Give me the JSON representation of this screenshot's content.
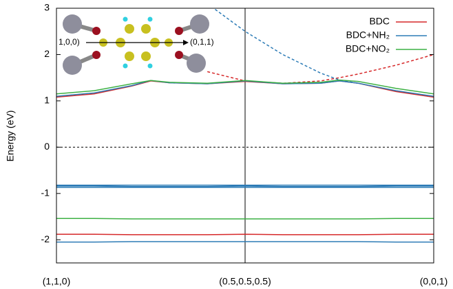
{
  "chart_data": {
    "type": "band-structure",
    "y_label": "Energy (eV)",
    "ylim": [
      -2.5,
      3
    ],
    "yticks": [
      -2,
      -1,
      0,
      1,
      2,
      3
    ],
    "xlim": [
      0,
      1
    ],
    "xticks": [
      {
        "value": 0,
        "label": "(1,1,0)"
      },
      {
        "value": 0.5,
        "label": "(0.5,0.5,0.5)"
      },
      {
        "value": 1,
        "label": "(0,0,1)"
      }
    ],
    "x": [
      0,
      0.1,
      0.2,
      0.25,
      0.3,
      0.4,
      0.5,
      0.6,
      0.7,
      0.75,
      0.8,
      0.9,
      1.0
    ],
    "inset_labels": [
      "1,0,0)",
      "(0,1,1)"
    ],
    "series": [
      {
        "name": "BDC",
        "color": "#d62728",
        "bands": [
          [
            1.08,
            1.15,
            1.32,
            1.43,
            1.39,
            1.37,
            1.42,
            1.37,
            1.38,
            1.43,
            1.38,
            1.2,
            1.08
          ],
          [
            -1.88,
            -1.88,
            -1.89,
            -1.89,
            -1.89,
            -1.89,
            -1.88,
            -1.89,
            -1.89,
            -1.89,
            -1.89,
            -1.88,
            -1.88
          ]
        ],
        "fit": [
          null,
          null,
          null,
          null,
          null,
          1.63,
          1.43,
          1.38,
          1.43,
          1.5,
          1.58,
          1.77,
          2.0
        ]
      },
      {
        "name": "BDC+NH₂",
        "color": "#2c7bb6",
        "bands": [
          [
            1.1,
            1.17,
            1.33,
            1.44,
            1.39,
            1.37,
            1.43,
            1.37,
            1.38,
            1.43,
            1.38,
            1.22,
            1.1
          ],
          [
            -0.82,
            -0.82,
            -0.82,
            -0.82,
            -0.82,
            -0.82,
            -0.82,
            -0.82,
            -0.82,
            -0.82,
            -0.82,
            -0.82,
            -0.82
          ],
          [
            -0.84,
            -0.84,
            -0.85,
            -0.85,
            -0.85,
            -0.85,
            -0.84,
            -0.85,
            -0.85,
            -0.85,
            -0.85,
            -0.84,
            -0.84
          ],
          [
            -0.87,
            -0.87,
            -0.87,
            -0.87,
            -0.87,
            -0.87,
            -0.87,
            -0.87,
            -0.87,
            -0.87,
            -0.87,
            -0.87,
            -0.87
          ],
          [
            -2.05,
            -2.05,
            -2.04,
            -2.04,
            -2.04,
            -2.04,
            -2.04,
            -2.04,
            -2.04,
            -2.04,
            -2.04,
            -2.05,
            -2.05
          ]
        ],
        "fit": [
          null,
          null,
          null,
          null,
          null,
          3.1,
          2.5,
          2.0,
          1.6,
          1.45,
          1.38,
          null,
          null
        ]
      },
      {
        "name": "BDC+NO₂",
        "color": "#3cb043",
        "bands": [
          [
            1.15,
            1.22,
            1.37,
            1.44,
            1.4,
            1.38,
            1.44,
            1.38,
            1.4,
            1.45,
            1.42,
            1.27,
            1.15
          ],
          [
            -1.54,
            -1.54,
            -1.55,
            -1.55,
            -1.55,
            -1.55,
            -1.55,
            -1.55,
            -1.55,
            -1.55,
            -1.55,
            -1.54,
            -1.54
          ]
        ],
        "fit": null
      }
    ]
  }
}
